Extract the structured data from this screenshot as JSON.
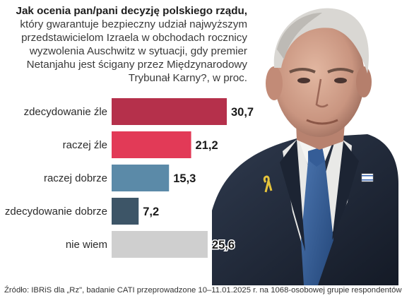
{
  "header": {
    "title": "Jak ocenia pan/pani decyzję polskiego rządu,",
    "subtitle": "który gwarantuje bezpieczny udział najwyższym przedstawicielom Izraela w obchodach rocznicy wyzwolenia Auschwitz w sytuacji, gdy premier Netanjahu jest ścigany przez Międzynarodowy Trybunał Karny?, w proc."
  },
  "footer": {
    "source": "Źródło: IBRiS dla „Rz\", badanie CATI przeprowadzone 10–11.01.2025 r. na 1068-osobowej grupie respondentów"
  },
  "colors": {
    "zdecydowanie_zle": "#b5304b",
    "raczej_zle": "#e23a57",
    "raczej_dobrze": "#5b8aa8",
    "zdecydowanie_dobrze": "#3d5567",
    "nie_wiem": "#cfcfcf"
  },
  "chart_data": {
    "type": "bar",
    "orientation": "horizontal",
    "categories": [
      "zdecydowanie źle",
      "raczej źle",
      "raczej dobrze",
      "zdecydowanie dobrze",
      "nie wiem"
    ],
    "values": [
      30.7,
      21.2,
      15.3,
      7.2,
      25.6
    ],
    "value_labels": [
      "30,7",
      "21,2",
      "15,3",
      "7,2",
      "25,6"
    ],
    "bar_colors": [
      "#b5304b",
      "#e23a57",
      "#5b8aa8",
      "#3d5567",
      "#cfcfcf"
    ],
    "xlim": [
      0,
      30.7
    ],
    "grid": false,
    "legend": "none"
  }
}
